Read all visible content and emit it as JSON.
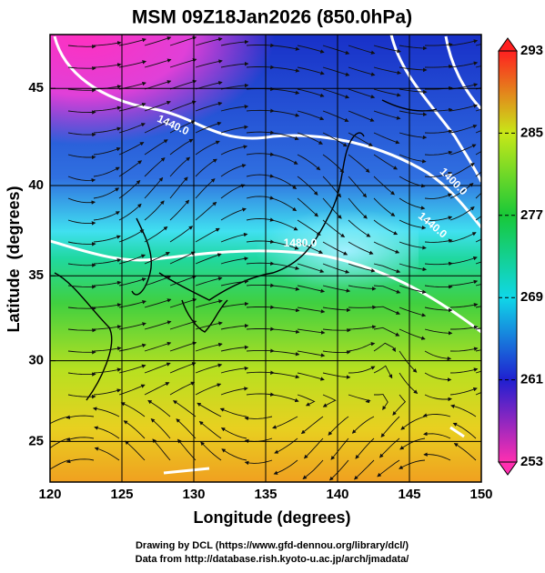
{
  "chart_data": {
    "type": "map",
    "title": "MSM 09Z18Jan2026 (850.0hPa)",
    "x_label": "Longitude (degrees)",
    "y_label": "Latitude  (degrees)",
    "projection": "mercator",
    "xlim": [
      120,
      150
    ],
    "xticks": [
      120,
      125,
      130,
      135,
      140,
      145,
      150
    ],
    "ylim": [
      22.4,
      47.6
    ],
    "yticks": [
      25,
      30,
      35,
      40,
      45
    ],
    "grid": true,
    "colorbar": {
      "lim": [
        253,
        293
      ],
      "ticks": [
        253,
        261,
        269,
        277,
        285,
        293
      ],
      "colors": [
        "#ff2fb0",
        "#1f1fd0",
        "#10d8e8",
        "#18c838",
        "#c8e818",
        "#ff2020"
      ]
    },
    "contour_labels": [
      "1440.0",
      "1400.0",
      "1440.0",
      "1480.0"
    ],
    "footer": [
      "Drawing by DCL (https://www.gfd-dennou.org/library/dcl/)",
      "Data from http://database.rish.kyoto-u.ac.jp/arch/jmadata/"
    ]
  }
}
